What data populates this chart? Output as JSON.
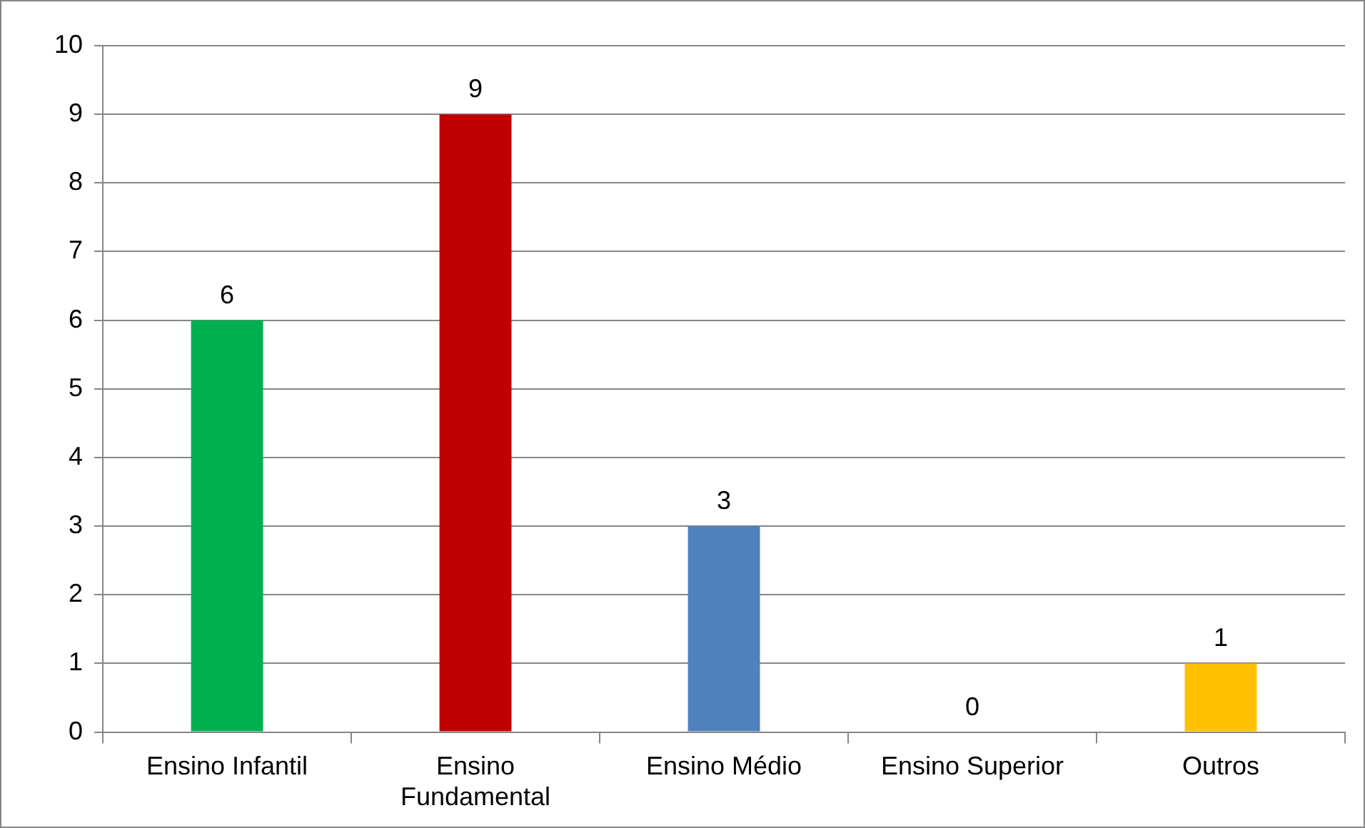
{
  "chart_data": {
    "type": "bar",
    "categories": [
      "Ensino Infantil",
      "Ensino Fundamental",
      "Ensino Médio",
      "Ensino Superior",
      "Outros"
    ],
    "values": [
      6,
      9,
      3,
      0,
      1
    ],
    "colors": [
      "#00b050",
      "#c00000",
      "#4f81bd",
      "#4f81bd",
      "#ffc000"
    ],
    "ylim": [
      0,
      10
    ],
    "yticks": [
      0,
      1,
      2,
      3,
      4,
      5,
      6,
      7,
      8,
      9,
      10
    ],
    "grid": "y",
    "legend": false,
    "data_labels": true
  }
}
